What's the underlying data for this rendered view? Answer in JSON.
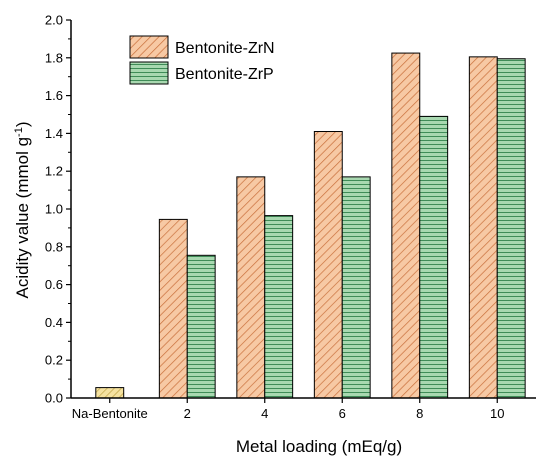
{
  "chart_data": {
    "type": "bar",
    "categories": [
      "Na-Bentonite",
      "2",
      "4",
      "6",
      "8",
      "10"
    ],
    "series": [
      {
        "name": "Bentonite-ZrN",
        "values": [
          null,
          0.945,
          1.17,
          1.41,
          1.825,
          1.805
        ],
        "fill": "#f7c9a4",
        "hatch": "#c9703c",
        "pattern": "diagonal"
      },
      {
        "name": "Bentonite-ZrP",
        "values": [
          null,
          0.755,
          0.965,
          1.17,
          1.49,
          1.795
        ],
        "fill": "#a8d8b0",
        "hatch": "#3f8c57",
        "pattern": "horizontal"
      }
    ],
    "reference_bar": {
      "category": "Na-Bentonite",
      "value": 0.055,
      "fill": "#f5e2a0",
      "hatch": "#b89b3a"
    },
    "xlabel": "Metal loading (mEq/g)",
    "ylabel": "Acidity value (mmol g",
    "ylabel_sup": "-1",
    "ylabel_close": ")",
    "ylim": [
      0,
      2.0
    ],
    "yticks": [
      "0.0",
      "0.2",
      "0.4",
      "0.6",
      "0.8",
      "1.0",
      "1.2",
      "1.4",
      "1.6",
      "1.8",
      "2.0"
    ],
    "legend_position": "top-left"
  }
}
